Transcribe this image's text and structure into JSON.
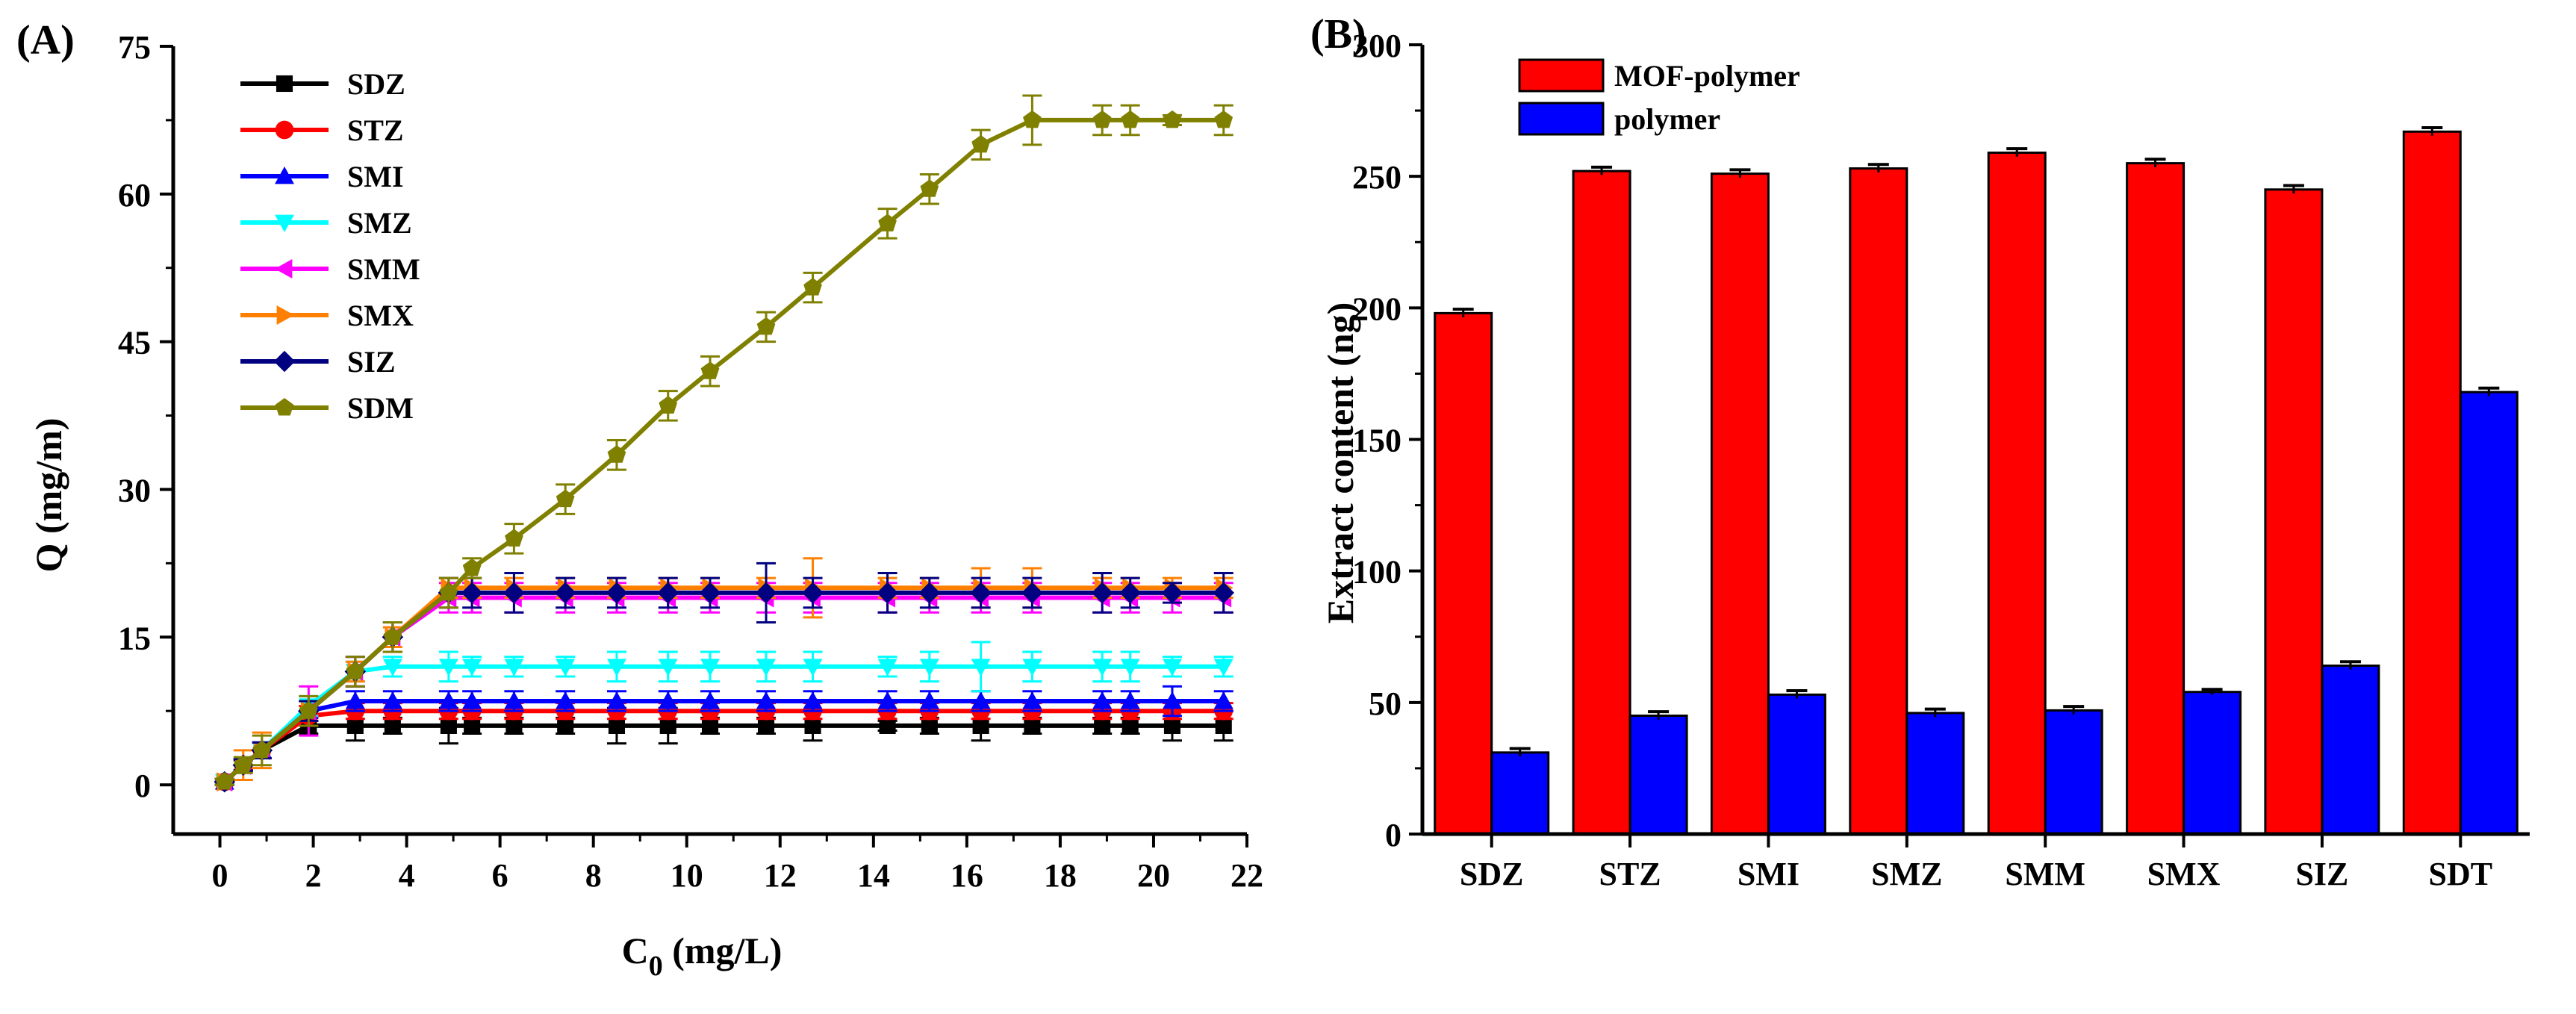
{
  "chart_data": [
    {
      "panel": "(A)",
      "type": "line",
      "title": "",
      "xlabel": "C",
      "xlabel_sub": "0",
      "xlabel_unit": " (mg/L)",
      "ylabel": "Q (mg/m)",
      "xlim": [
        -1,
        22
      ],
      "ylim": [
        -5,
        75
      ],
      "xticks": [
        0,
        2,
        4,
        6,
        8,
        10,
        12,
        14,
        16,
        18,
        20,
        22
      ],
      "yticks": [
        0,
        15,
        30,
        45,
        60,
        75
      ],
      "legend_position": "top-left",
      "series": [
        {
          "name": "SDZ",
          "color": "#000000",
          "marker": "square",
          "x": [
            0.1,
            0.5,
            0.9,
            1.9,
            2.9,
            3.7,
            4.9,
            5.4,
            6.3,
            7.4,
            8.5,
            9.6,
            10.5,
            11.7,
            12.7,
            14.3,
            15.2,
            16.3,
            17.4,
            18.9,
            19.5,
            20.4,
            21.5
          ],
          "y": [
            0.3,
            2.0,
            3.5,
            6.0,
            6.0,
            6.0,
            6.0,
            6.0,
            6.0,
            6.0,
            6.0,
            6.0,
            6.0,
            6.0,
            6.0,
            6.0,
            6.0,
            6.0,
            6.0,
            6.0,
            6.0,
            6.0,
            6.0
          ],
          "error": [
            0.3,
            0.5,
            0.8,
            0.8,
            1.5,
            0.8,
            1.8,
            0.8,
            0.8,
            0.8,
            1.8,
            1.8,
            0.8,
            0.8,
            1.5,
            0.5,
            0.8,
            1.5,
            0.8,
            0.8,
            0.8,
            1.5,
            1.5
          ]
        },
        {
          "name": "STZ",
          "color": "#ff0000",
          "marker": "circle",
          "x": [
            0.1,
            0.5,
            0.9,
            1.9,
            2.9,
            3.7,
            4.9,
            5.4,
            6.3,
            7.4,
            8.5,
            9.6,
            10.5,
            11.7,
            12.7,
            14.3,
            15.2,
            16.3,
            17.4,
            18.9,
            19.5,
            20.4,
            21.5
          ],
          "y": [
            0.3,
            2.0,
            3.5,
            7.0,
            7.5,
            7.5,
            7.5,
            7.5,
            7.5,
            7.5,
            7.5,
            7.5,
            7.5,
            7.5,
            7.5,
            7.5,
            7.5,
            7.5,
            7.5,
            7.5,
            7.5,
            7.5,
            7.5
          ],
          "error": [
            0.3,
            0.6,
            0.8,
            1.0,
            0.8,
            0.8,
            0.8,
            0.8,
            0.8,
            0.8,
            0.8,
            0.8,
            0.8,
            0.8,
            0.8,
            0.8,
            0.8,
            0.8,
            0.8,
            0.8,
            0.8,
            0.8,
            0.8
          ]
        },
        {
          "name": "SMI",
          "color": "#0000ff",
          "marker": "triangle-up",
          "x": [
            0.1,
            0.5,
            0.9,
            1.9,
            2.9,
            3.7,
            4.9,
            5.4,
            6.3,
            7.4,
            8.5,
            9.6,
            10.5,
            11.7,
            12.7,
            14.3,
            15.2,
            16.3,
            17.4,
            18.9,
            19.5,
            20.4,
            21.5
          ],
          "y": [
            0.3,
            2.0,
            3.5,
            7.5,
            8.5,
            8.5,
            8.5,
            8.5,
            8.5,
            8.5,
            8.5,
            8.5,
            8.5,
            8.5,
            8.5,
            8.5,
            8.5,
            8.5,
            8.5,
            8.5,
            8.5,
            8.5,
            8.5
          ],
          "error": [
            0.3,
            0.6,
            0.8,
            1.0,
            1.0,
            1.0,
            1.0,
            1.0,
            1.0,
            1.0,
            1.0,
            1.0,
            1.0,
            1.0,
            1.0,
            1.0,
            1.0,
            1.0,
            1.0,
            1.0,
            1.0,
            1.5,
            1.0
          ]
        },
        {
          "name": "SMZ",
          "color": "#00ffff",
          "marker": "triangle-down",
          "x": [
            0.1,
            0.5,
            0.9,
            1.9,
            2.9,
            3.7,
            4.9,
            5.4,
            6.3,
            7.4,
            8.5,
            9.6,
            10.5,
            11.7,
            12.7,
            14.3,
            15.2,
            16.3,
            17.4,
            18.9,
            19.5,
            20.4,
            21.5
          ],
          "y": [
            0.3,
            2.0,
            3.5,
            8.0,
            11.5,
            12.0,
            12.0,
            12.0,
            12.0,
            12.0,
            12.0,
            12.0,
            12.0,
            12.0,
            12.0,
            12.0,
            12.0,
            12.0,
            12.0,
            12.0,
            12.0,
            12.0,
            12.0
          ],
          "error": [
            0.3,
            0.6,
            0.8,
            1.0,
            1.0,
            1.0,
            1.5,
            1.0,
            1.0,
            1.0,
            1.5,
            1.5,
            1.5,
            1.5,
            1.5,
            1.0,
            1.5,
            2.5,
            1.5,
            1.5,
            1.5,
            1.0,
            1.0
          ]
        },
        {
          "name": "SMM",
          "color": "#ff00ff",
          "marker": "triangle-left",
          "x": [
            0.1,
            0.5,
            0.9,
            1.9,
            2.9,
            3.7,
            4.9,
            5.4,
            6.3,
            7.4,
            8.5,
            9.6,
            10.5,
            11.7,
            12.7,
            14.3,
            15.2,
            16.3,
            17.4,
            18.9,
            19.5,
            20.4,
            21.5
          ],
          "y": [
            0.3,
            2.0,
            3.5,
            7.5,
            11.5,
            15.0,
            19.0,
            19.0,
            19.0,
            19.0,
            19.0,
            19.0,
            19.0,
            19.0,
            19.0,
            19.0,
            19.0,
            19.0,
            19.0,
            19.0,
            19.0,
            19.0,
            19.0
          ],
          "error": [
            0.3,
            0.6,
            0.8,
            2.5,
            1.5,
            1.5,
            1.5,
            1.5,
            1.5,
            1.5,
            1.5,
            1.5,
            1.5,
            1.5,
            1.5,
            1.5,
            1.5,
            1.5,
            1.5,
            1.5,
            1.5,
            1.5,
            1.5
          ]
        },
        {
          "name": "SMX",
          "color": "#ff8000",
          "marker": "triangle-right",
          "x": [
            0.1,
            0.5,
            0.9,
            1.9,
            2.9,
            3.7,
            4.9,
            5.4,
            6.3,
            7.4,
            8.5,
            9.6,
            10.5,
            11.7,
            12.7,
            14.3,
            15.2,
            16.3,
            17.4,
            18.9,
            19.5,
            20.4,
            21.5
          ],
          "y": [
            0.3,
            2.0,
            3.5,
            7.5,
            11.5,
            15.0,
            20.0,
            20.0,
            20.0,
            20.0,
            20.0,
            20.0,
            20.0,
            20.0,
            20.0,
            20.0,
            20.0,
            20.0,
            20.0,
            20.0,
            20.0,
            20.0,
            20.0
          ],
          "error": [
            0.3,
            1.5,
            1.8,
            1.0,
            1.0,
            1.0,
            1.0,
            1.0,
            1.0,
            1.0,
            1.0,
            1.0,
            1.0,
            1.0,
            3.0,
            1.0,
            1.0,
            2.0,
            2.0,
            1.0,
            1.0,
            1.0,
            1.0
          ]
        },
        {
          "name": "SIZ",
          "color": "#000080",
          "marker": "diamond",
          "x": [
            0.1,
            0.5,
            0.9,
            1.9,
            2.9,
            3.7,
            4.9,
            5.4,
            6.3,
            7.4,
            8.5,
            9.6,
            10.5,
            11.7,
            12.7,
            14.3,
            15.2,
            16.3,
            17.4,
            18.9,
            19.5,
            20.4,
            21.5
          ],
          "y": [
            0.3,
            2.0,
            3.5,
            7.5,
            11.5,
            15.0,
            19.5,
            19.5,
            19.5,
            19.5,
            19.5,
            19.5,
            19.5,
            19.5,
            19.5,
            19.5,
            19.5,
            19.5,
            19.5,
            19.5,
            19.5,
            19.5,
            19.5
          ],
          "error": [
            0.3,
            0.6,
            0.8,
            1.0,
            1.5,
            1.5,
            1.5,
            1.5,
            2.0,
            1.5,
            1.5,
            1.5,
            1.5,
            3.0,
            1.5,
            2.0,
            1.5,
            1.5,
            1.5,
            2.0,
            1.5,
            1.0,
            2.0
          ]
        },
        {
          "name": "SDM",
          "color": "#808000",
          "marker": "pentagon",
          "x": [
            0.1,
            0.5,
            0.9,
            1.9,
            2.9,
            3.7,
            4.9,
            5.4,
            6.3,
            7.4,
            8.5,
            9.6,
            10.5,
            11.7,
            12.7,
            14.3,
            15.2,
            16.3,
            17.4,
            18.9,
            19.5,
            20.4,
            21.5
          ],
          "y": [
            0.3,
            2.0,
            3.5,
            7.5,
            11.5,
            15.0,
            19.5,
            22.0,
            25.0,
            29.0,
            33.5,
            38.5,
            42.0,
            46.5,
            50.5,
            57.0,
            60.5,
            65.0,
            67.5,
            67.5,
            67.5,
            67.5,
            67.5
          ],
          "error": [
            0.3,
            0.8,
            1.5,
            1.5,
            1.5,
            1.5,
            1.5,
            1.0,
            1.5,
            1.5,
            1.5,
            1.5,
            1.5,
            1.5,
            1.5,
            1.5,
            1.5,
            1.5,
            2.5,
            1.5,
            1.5,
            0.5,
            1.5
          ]
        }
      ]
    },
    {
      "panel": "(B)",
      "type": "bar",
      "title": "",
      "xlabel": "",
      "ylabel": "Extract content (ng)",
      "ylim": [
        0,
        300
      ],
      "yticks": [
        0,
        50,
        100,
        150,
        200,
        250,
        300
      ],
      "categories": [
        "SDZ",
        "STZ",
        "SMI",
        "SMZ",
        "SMM",
        "SMX",
        "SIZ",
        "SDT"
      ],
      "legend_position": "top-left",
      "series": [
        {
          "name": "MOF-polymer",
          "color": "#ff0000",
          "values": [
            198,
            252,
            251,
            253,
            259,
            255,
            245,
            267
          ],
          "error": [
            1.5,
            1.5,
            1.5,
            1.5,
            1.5,
            1.5,
            1.5,
            1.5
          ]
        },
        {
          "name": "polymer",
          "color": "#0000ff",
          "values": [
            31,
            45,
            53,
            46,
            47,
            54,
            64,
            168
          ],
          "error": [
            1.5,
            1.5,
            1.5,
            1.5,
            1.5,
            1.0,
            1.5,
            1.5
          ]
        }
      ]
    }
  ]
}
